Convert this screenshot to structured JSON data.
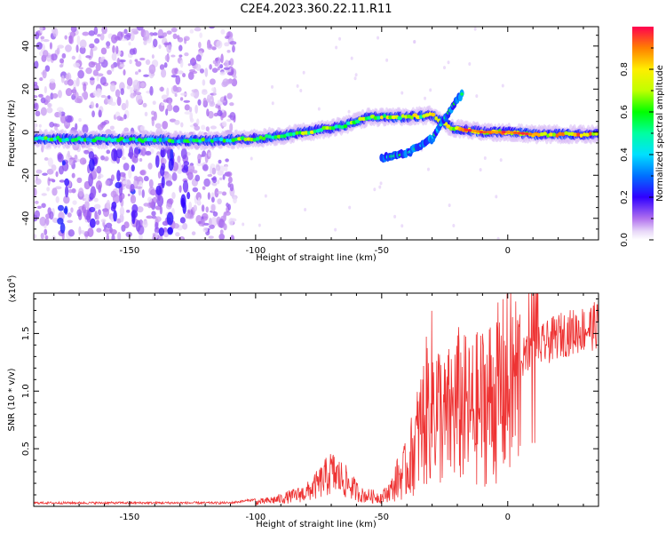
{
  "title": "C2E4.2023.360.22.11.R11",
  "chart_data": [
    {
      "type": "heatmap",
      "xlabel": "Height of straight line (km)",
      "ylabel": "Frequency (Hz)",
      "xlim": [
        -188,
        36
      ],
      "ylim": [
        -50,
        49
      ],
      "xticks": [
        -150,
        -100,
        -50,
        0
      ],
      "yticks": [
        -40,
        -20,
        0,
        20,
        40
      ],
      "colorbar": {
        "label": "Normalized spectral amplitude",
        "range": [
          0.0,
          1.0
        ],
        "ticks": [
          "0.0",
          "0.2",
          "0.4",
          "0.6",
          "0.8"
        ]
      },
      "ridge": {
        "description_points": [
          [
            -188,
            -3
          ],
          [
            -120,
            -4
          ],
          [
            -100,
            -3
          ],
          [
            -80,
            0
          ],
          [
            -65,
            3
          ],
          [
            -55,
            7
          ],
          [
            -40,
            7
          ],
          [
            -30,
            8
          ],
          [
            -22,
            2
          ],
          [
            -10,
            0
          ],
          [
            0,
            0
          ],
          [
            10,
            -1
          ],
          [
            36,
            -1
          ]
        ],
        "secondary_branch": [
          [
            -50,
            -12
          ],
          [
            -40,
            -10
          ],
          [
            -30,
            -3
          ],
          [
            -22,
            12
          ],
          [
            -18,
            18
          ]
        ]
      }
    },
    {
      "type": "line",
      "xlabel": "Height of straight line (km)",
      "ylabel": "SNR (10 * v/v)",
      "multiplier": "(x10⁴)",
      "xlim": [
        -188,
        36
      ],
      "ylim": [
        0,
        1.85
      ],
      "xticks": [
        -150,
        -100,
        -50,
        0
      ],
      "yticks": [
        "0.5",
        "1.0",
        "1.5"
      ],
      "color": "#ee3333",
      "envelope": [
        [
          -188,
          0.02
        ],
        [
          -110,
          0.02
        ],
        [
          -100,
          0.05
        ],
        [
          -90,
          0.1
        ],
        [
          -80,
          0.18
        ],
        [
          -75,
          0.3
        ],
        [
          -70,
          0.45
        ],
        [
          -65,
          0.35
        ],
        [
          -58,
          0.15
        ],
        [
          -50,
          0.12
        ],
        [
          -40,
          0.4
        ],
        [
          -35,
          0.8
        ],
        [
          -30,
          1.2
        ],
        [
          -25,
          0.9
        ],
        [
          -20,
          1.1
        ],
        [
          -15,
          1.0
        ],
        [
          -10,
          1.1
        ],
        [
          -5,
          1.2
        ],
        [
          0,
          1.3
        ],
        [
          10,
          1.45
        ],
        [
          20,
          1.6
        ],
        [
          36,
          1.7
        ]
      ]
    }
  ]
}
